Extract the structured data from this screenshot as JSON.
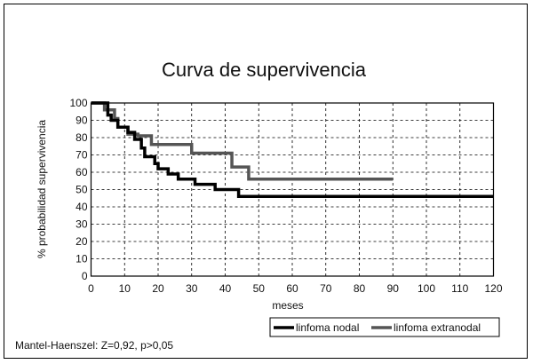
{
  "chart_data": {
    "type": "line",
    "title": "Curva de supervivencia",
    "xlabel": "meses",
    "ylabel": "% probabilidad supervivencia",
    "xlim": [
      0,
      120
    ],
    "ylim": [
      0,
      100
    ],
    "xticks": [
      0,
      10,
      20,
      30,
      40,
      50,
      60,
      70,
      80,
      90,
      100,
      110,
      120
    ],
    "yticks": [
      0,
      10,
      20,
      30,
      40,
      50,
      60,
      70,
      80,
      90,
      100
    ],
    "grid": true,
    "legend_position": "bottom-right",
    "annotation": "Mantel-Haenszel: Z=0,92, p>0,05",
    "series": [
      {
        "name": "linfoma nodal",
        "color": "#000000",
        "step_points": [
          [
            0,
            100
          ],
          [
            5,
            100
          ],
          [
            5,
            93
          ],
          [
            6,
            93
          ],
          [
            6,
            90
          ],
          [
            8,
            90
          ],
          [
            8,
            86
          ],
          [
            11,
            86
          ],
          [
            11,
            83
          ],
          [
            13,
            83
          ],
          [
            13,
            79
          ],
          [
            15,
            79
          ],
          [
            15,
            74
          ],
          [
            16,
            74
          ],
          [
            16,
            69
          ],
          [
            19,
            69
          ],
          [
            19,
            65
          ],
          [
            20,
            65
          ],
          [
            20,
            62
          ],
          [
            23,
            62
          ],
          [
            23,
            59
          ],
          [
            26,
            59
          ],
          [
            26,
            56
          ],
          [
            31,
            56
          ],
          [
            31,
            53
          ],
          [
            37,
            53
          ],
          [
            37,
            50
          ],
          [
            44,
            50
          ],
          [
            44,
            46
          ],
          [
            120,
            46
          ]
        ]
      },
      {
        "name": "linfoma extranodal",
        "color": "#555555",
        "step_points": [
          [
            0,
            100
          ],
          [
            4,
            100
          ],
          [
            4,
            96
          ],
          [
            7,
            96
          ],
          [
            7,
            91
          ],
          [
            8,
            91
          ],
          [
            8,
            86
          ],
          [
            11,
            86
          ],
          [
            11,
            82
          ],
          [
            14,
            82
          ],
          [
            14,
            81
          ],
          [
            18,
            81
          ],
          [
            18,
            76
          ],
          [
            30,
            76
          ],
          [
            30,
            71
          ],
          [
            42,
            71
          ],
          [
            42,
            63
          ],
          [
            47,
            63
          ],
          [
            47,
            56
          ],
          [
            90,
            56
          ]
        ]
      }
    ]
  }
}
